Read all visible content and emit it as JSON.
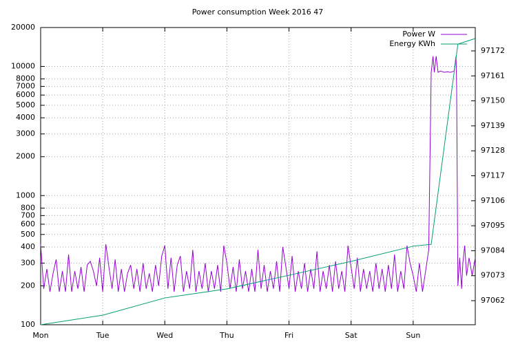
{
  "chart_data": {
    "type": "line",
    "title": "Power consumption Week 2016 47",
    "xlim": [
      0,
      7
    ],
    "xticks": [
      {
        "value": 0,
        "label": "Mon"
      },
      {
        "value": 1,
        "label": "Tue"
      },
      {
        "value": 2,
        "label": "Wed"
      },
      {
        "value": 3,
        "label": "Thu"
      },
      {
        "value": 4,
        "label": "Fri"
      },
      {
        "value": 5,
        "label": "Sat"
      },
      {
        "value": 6,
        "label": "Sun"
      }
    ],
    "ylim": [
      100,
      20000
    ],
    "log_y": true,
    "yticks": [
      100,
      200,
      300,
      400,
      500,
      600,
      700,
      800,
      1000,
      2000,
      3000,
      4000,
      5000,
      6000,
      7000,
      8000,
      10000,
      20000
    ],
    "y2lim": [
      97051.4,
      97182.3
    ],
    "y2ticks": [
      97062,
      97073,
      97084,
      97095,
      97106,
      97117,
      97128,
      97139,
      97150,
      97161,
      97172
    ],
    "grid": true,
    "legend": "top-right",
    "series": [
      {
        "name": "Power W",
        "color": "#9400d3",
        "x": [
          0.0,
          0.05,
          0.1,
          0.15,
          0.2,
          0.25,
          0.3,
          0.35,
          0.4,
          0.45,
          0.5,
          0.55,
          0.6,
          0.65,
          0.7,
          0.75,
          0.8,
          0.85,
          0.9,
          0.95,
          1.0,
          1.05,
          1.1,
          1.15,
          1.2,
          1.25,
          1.3,
          1.35,
          1.4,
          1.45,
          1.5,
          1.55,
          1.6,
          1.65,
          1.7,
          1.75,
          1.8,
          1.85,
          1.9,
          1.95,
          2.0,
          2.05,
          2.1,
          2.15,
          2.2,
          2.25,
          2.3,
          2.35,
          2.4,
          2.45,
          2.5,
          2.55,
          2.6,
          2.65,
          2.7,
          2.75,
          2.8,
          2.85,
          2.9,
          2.95,
          3.0,
          3.05,
          3.1,
          3.15,
          3.2,
          3.25,
          3.3,
          3.35,
          3.4,
          3.45,
          3.5,
          3.55,
          3.6,
          3.65,
          3.7,
          3.75,
          3.8,
          3.85,
          3.9,
          3.95,
          4.0,
          4.05,
          4.1,
          4.15,
          4.2,
          4.25,
          4.3,
          4.35,
          4.4,
          4.45,
          4.5,
          4.55,
          4.6,
          4.65,
          4.7,
          4.75,
          4.8,
          4.85,
          4.9,
          4.95,
          5.0,
          5.05,
          5.1,
          5.15,
          5.2,
          5.25,
          5.3,
          5.35,
          5.4,
          5.45,
          5.5,
          5.55,
          5.6,
          5.65,
          5.7,
          5.75,
          5.8,
          5.85,
          5.9,
          5.95,
          6.0,
          6.05,
          6.1,
          6.15,
          6.2,
          6.25,
          6.29,
          6.32,
          6.34,
          6.37,
          6.4,
          6.44,
          6.5,
          6.55,
          6.6,
          6.66,
          6.69,
          6.7,
          6.72,
          6.75,
          6.78,
          6.8,
          6.83,
          6.86,
          6.9,
          6.95,
          7.0
        ],
        "values": [
          420,
          190,
          270,
          180,
          250,
          320,
          180,
          260,
          180,
          350,
          180,
          260,
          190,
          280,
          180,
          290,
          310,
          260,
          200,
          330,
          180,
          420,
          280,
          190,
          320,
          180,
          270,
          180,
          250,
          290,
          190,
          270,
          180,
          300,
          190,
          250,
          180,
          290,
          200,
          340,
          410,
          190,
          330,
          180,
          290,
          340,
          180,
          260,
          190,
          380,
          180,
          260,
          190,
          300,
          180,
          260,
          190,
          290,
          180,
          410,
          300,
          190,
          280,
          180,
          320,
          190,
          260,
          180,
          270,
          180,
          380,
          190,
          290,
          180,
          260,
          190,
          310,
          180,
          400,
          280,
          190,
          340,
          180,
          260,
          190,
          300,
          180,
          270,
          190,
          370,
          180,
          260,
          190,
          290,
          180,
          310,
          190,
          260,
          180,
          410,
          280,
          190,
          330,
          180,
          270,
          190,
          260,
          180,
          300,
          190,
          270,
          180,
          290,
          190,
          350,
          180,
          260,
          190,
          410,
          300,
          240,
          180,
          300,
          180,
          260,
          380,
          9000,
          12000,
          9000,
          12000,
          9000,
          9200,
          9000,
          9100,
          9000,
          9200,
          12000,
          7000,
          200,
          330,
          190,
          300,
          410,
          240,
          330,
          240,
          330
        ]
      },
      {
        "name": "Energy KWh",
        "color": "#009e73",
        "axis": "y2",
        "x": [
          0,
          1,
          2,
          3,
          4,
          5,
          6,
          6.29,
          6.72,
          7
        ],
        "values": [
          97051.4,
          97055.6,
          97063.2,
          97067.2,
          97073.2,
          97079.3,
          97086,
          97086.8,
          97175,
          97177.5
        ]
      }
    ]
  }
}
